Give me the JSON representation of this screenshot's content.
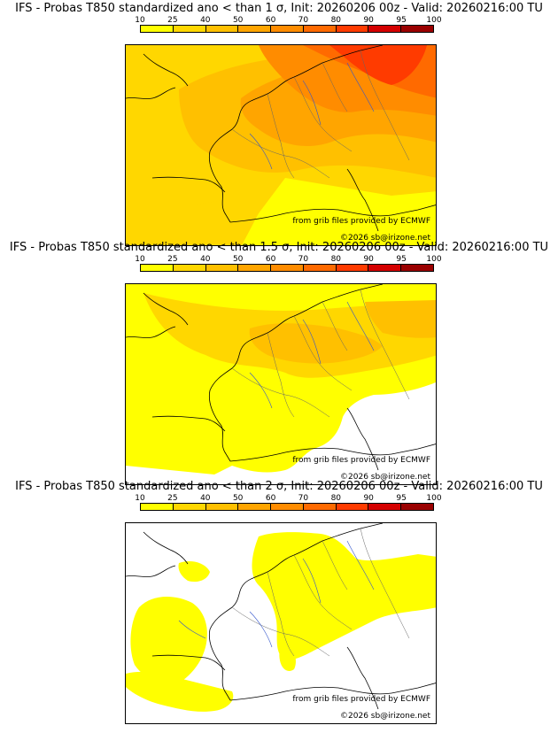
{
  "colorbar": {
    "ticks": [
      "10",
      "25",
      "40",
      "50",
      "60",
      "70",
      "80",
      "90",
      "95",
      "100"
    ],
    "colors": [
      "#ffff00",
      "#ffd700",
      "#ffc000",
      "#ffa500",
      "#ff8c00",
      "#ff6a00",
      "#ff3b00",
      "#d40000",
      "#9a0000",
      "#5a0000"
    ]
  },
  "panels": [
    {
      "title": "IFS - Probas T850  standardized ano < than 1 σ, Init: 20260206 00z - Valid: 20260216:00 TU",
      "credit_source": "from grib files provided by ECMWF",
      "credit_copyright": "©2026 sb@irizone.net"
    },
    {
      "title": "IFS - Probas T850  standardized ano < than 1.5 σ, Init: 20260206 00z - Valid: 20260216:00 TU",
      "credit_source": "from grib files provided by ECMWF",
      "credit_copyright": "©2026 sb@irizone.net"
    },
    {
      "title": "IFS - Probas T850  standardized ano < than 2 σ, Init: 20260206 00z - Valid: 20260216:00 TU",
      "credit_source": "from grib files provided by ECMWF",
      "credit_copyright": "©2026 sb@irizone.net"
    }
  ]
}
